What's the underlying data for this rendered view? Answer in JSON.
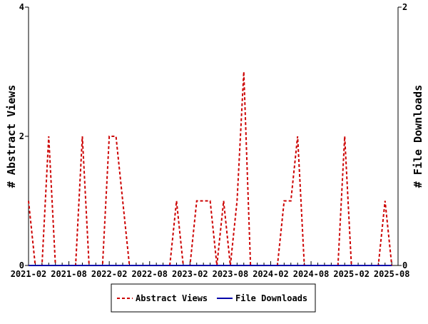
{
  "chart_data": {
    "type": "line",
    "title": "",
    "xlabel": "",
    "ylabel": "# Abstract Views",
    "y2label": "# File Downloads",
    "ylim": [
      0,
      4
    ],
    "y2lim": [
      0,
      2
    ],
    "yticks": [
      "0",
      "2",
      "4"
    ],
    "y2ticks": [
      "0",
      "2"
    ],
    "xtick_labels": [
      "2021-02",
      "2021-08",
      "2022-02",
      "2022-08",
      "2023-02",
      "2023-08",
      "2024-02",
      "2024-08",
      "2025-02",
      "2025-08"
    ],
    "x_start": "2021-02",
    "x_months": 55,
    "legend_position": "bottom",
    "series": [
      {
        "name": "Abstract Views",
        "axis": "left",
        "color": "#cc0000",
        "style": "dashed",
        "values": [
          1,
          0,
          0,
          2,
          0,
          0,
          0,
          0,
          2,
          0,
          0,
          0,
          2,
          2,
          1,
          0,
          0,
          0,
          0,
          0,
          0,
          0,
          1,
          0,
          0,
          1,
          1,
          1,
          0,
          1,
          0,
          1,
          3,
          0,
          0,
          0,
          0,
          0,
          1,
          1,
          2,
          0,
          0,
          0,
          0,
          0,
          0,
          2,
          0,
          0,
          0,
          0,
          0,
          1,
          0
        ]
      },
      {
        "name": "File Downloads",
        "axis": "right",
        "color": "#0000aa",
        "style": "solid",
        "values": [
          0,
          0,
          0,
          0,
          0,
          0,
          0,
          0,
          0,
          0,
          0,
          0,
          0,
          0,
          0,
          0,
          0,
          0,
          0,
          0,
          0,
          0,
          0,
          0,
          0,
          0,
          0,
          0,
          0,
          0,
          0,
          0,
          0,
          0,
          0,
          0,
          0,
          0,
          0,
          0,
          0,
          0,
          0,
          0,
          0,
          0,
          0,
          0,
          0,
          0,
          0,
          0,
          0,
          0,
          0
        ]
      }
    ]
  }
}
